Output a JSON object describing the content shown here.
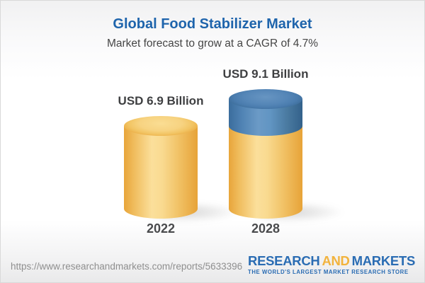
{
  "header": {
    "title": "Global Food Stabilizer Market",
    "subtitle": "Market forecast to grow at a CAGR of 4.7%"
  },
  "chart_data": {
    "type": "bar",
    "subtype": "3d-cylinder",
    "title": "Global Food Stabilizer Market",
    "subtitle": "Market forecast to grow at a CAGR of 4.7%",
    "unit": "USD Billion",
    "cagr_percent": 4.7,
    "categories": [
      "2022",
      "2028"
    ],
    "values": [
      6.9,
      9.1
    ],
    "value_labels": [
      "USD 6.9 Billion",
      "USD 9.1 Billion"
    ],
    "growth_highlight": {
      "category": "2028",
      "base_value": 6.9,
      "growth_value": 2.2,
      "note": "blue top segment of 2028 cylinder shows growth above 2022 base"
    },
    "colors": {
      "base_fill": "#f5cd78",
      "base_edge": "#e8a53a",
      "growth_fill": "#5586b7",
      "growth_edge": "#3b6d9d",
      "label_text": "#3e3f41",
      "title_blue": "#1e64ac"
    },
    "legend": "none",
    "grid": "off"
  },
  "footer": {
    "url": "https://www.researchandmarkets.com/reports/5633396",
    "logo": {
      "research": "RESEARCH",
      "and": "AND",
      "markets": "MARKETS",
      "tagline": "THE WORLD'S LARGEST MARKET RESEARCH STORE",
      "blue": "#2a6cb3",
      "gold": "#f2b33d"
    }
  }
}
